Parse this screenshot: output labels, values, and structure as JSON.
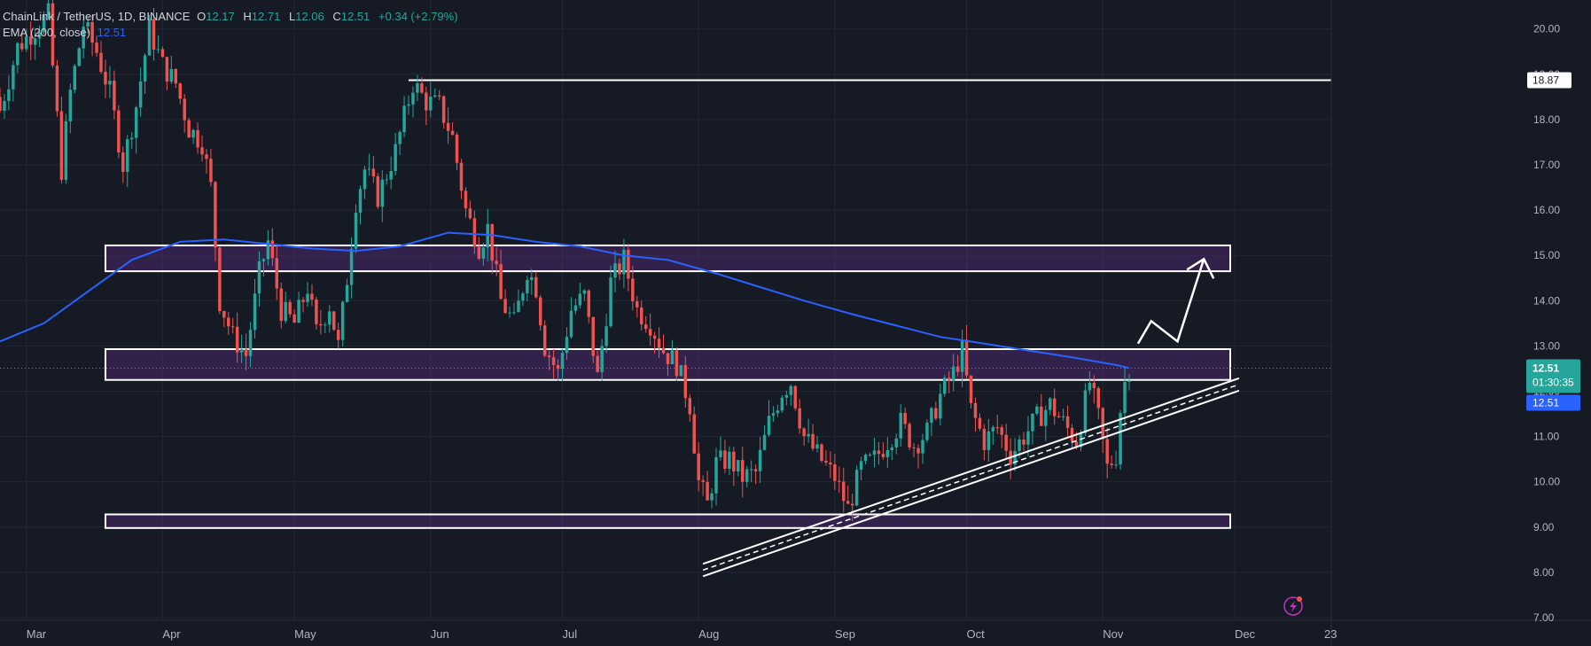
{
  "header": {
    "symbol": "ChainLink / TetherUS, 1D, BINANCE",
    "open_label": "O",
    "open": "12.17",
    "high_label": "H",
    "high": "12.71",
    "low_label": "L",
    "low": "12.06",
    "close_label": "C",
    "close": "12.51",
    "change": "+0.34 (+2.79%)",
    "ema_label": "EMA (200, close)",
    "ema_value": "12.51"
  },
  "price_tags": {
    "top_line": "18.87",
    "last_price": "12.51",
    "countdown": "01:30:35",
    "ema_tag": "12.51"
  },
  "colors": {
    "background": "#161a25",
    "up": "#26a69a",
    "down": "#ef5350",
    "ema": "#2962ff",
    "zone_fill": "#4a2a6b",
    "zone_stroke": "#ffffff",
    "text": "#b2b5be"
  },
  "chart_data": {
    "type": "candlestick",
    "y_axis": {
      "min": 7,
      "max": 20.5,
      "ticks": [
        "7.00",
        "8.00",
        "9.00",
        "10.00",
        "11.00",
        "12.00",
        "13.00",
        "14.00",
        "15.00",
        "16.00",
        "17.00",
        "18.00",
        "19.00",
        "20.00"
      ],
      "position": "right"
    },
    "x_axis": {
      "start": "2023-02-23",
      "end": "2023-12-23",
      "ticks": [
        {
          "label": "Mar",
          "date": "2023-03-01"
        },
        {
          "label": "Apr",
          "date": "2023-04-01"
        },
        {
          "label": "May",
          "date": "2023-05-01"
        },
        {
          "label": "Jun",
          "date": "2023-06-01"
        },
        {
          "label": "Jul",
          "date": "2023-07-01"
        },
        {
          "label": "Aug",
          "date": "2023-08-01"
        },
        {
          "label": "Sep",
          "date": "2023-09-01"
        },
        {
          "label": "Oct",
          "date": "2023-10-01"
        },
        {
          "label": "Nov",
          "date": "2023-11-01"
        },
        {
          "label": "Dec",
          "date": "2023-12-01"
        },
        {
          "label": "23",
          "date": "2023-12-23"
        }
      ]
    },
    "grid": true,
    "price_path": [
      [
        "2023-02-23",
        18.2
      ],
      [
        "2023-02-27",
        19.6
      ],
      [
        "2023-03-02",
        19.9
      ],
      [
        "2023-03-06",
        20.3
      ],
      [
        "2023-03-09",
        16.9
      ],
      [
        "2023-03-11",
        18.6
      ],
      [
        "2023-03-14",
        20.1
      ],
      [
        "2023-03-17",
        19.5
      ],
      [
        "2023-03-20",
        18.6
      ],
      [
        "2023-03-23",
        17.0
      ],
      [
        "2023-03-26",
        18.3
      ],
      [
        "2023-03-29",
        20.0
      ],
      [
        "2023-04-01",
        19.2
      ],
      [
        "2023-04-04",
        18.8
      ],
      [
        "2023-04-07",
        17.8
      ],
      [
        "2023-04-10",
        17.5
      ],
      [
        "2023-04-12",
        16.5
      ],
      [
        "2023-04-14",
        14.0
      ],
      [
        "2023-04-17",
        13.2
      ],
      [
        "2023-04-20",
        12.8
      ],
      [
        "2023-04-23",
        14.6
      ],
      [
        "2023-04-25",
        15.3
      ],
      [
        "2023-04-28",
        13.8
      ],
      [
        "2023-05-01",
        13.5
      ],
      [
        "2023-05-04",
        14.3
      ],
      [
        "2023-05-06",
        13.3
      ],
      [
        "2023-05-09",
        13.9
      ],
      [
        "2023-05-11",
        13.0
      ],
      [
        "2023-05-13",
        14.5
      ],
      [
        "2023-05-15",
        16.2
      ],
      [
        "2023-05-17",
        16.9
      ],
      [
        "2023-05-20",
        16.3
      ],
      [
        "2023-05-24",
        17.3
      ],
      [
        "2023-05-28",
        18.8
      ],
      [
        "2023-05-31",
        18.4
      ],
      [
        "2023-06-03",
        18.3
      ],
      [
        "2023-06-06",
        17.6
      ],
      [
        "2023-06-09",
        16.0
      ],
      [
        "2023-06-12",
        15.2
      ],
      [
        "2023-06-14",
        15.6
      ],
      [
        "2023-06-17",
        14.0
      ],
      [
        "2023-06-20",
        13.5
      ],
      [
        "2023-06-23",
        14.7
      ],
      [
        "2023-06-25",
        14.3
      ],
      [
        "2023-06-27",
        13.0
      ],
      [
        "2023-06-30",
        12.4
      ],
      [
        "2023-07-03",
        13.8
      ],
      [
        "2023-07-06",
        14.1
      ],
      [
        "2023-07-09",
        12.3
      ],
      [
        "2023-07-12",
        14.4
      ],
      [
        "2023-07-15",
        14.9
      ],
      [
        "2023-07-18",
        13.8
      ],
      [
        "2023-07-21",
        13.5
      ],
      [
        "2023-07-24",
        12.9
      ],
      [
        "2023-07-27",
        12.6
      ],
      [
        "2023-07-30",
        11.7
      ],
      [
        "2023-08-01",
        10.0
      ],
      [
        "2023-08-03",
        9.5
      ],
      [
        "2023-08-05",
        10.4
      ],
      [
        "2023-08-08",
        10.5
      ],
      [
        "2023-08-11",
        10.1
      ],
      [
        "2023-08-14",
        10.2
      ],
      [
        "2023-08-17",
        11.3
      ],
      [
        "2023-08-20",
        12.0
      ],
      [
        "2023-08-22",
        12.2
      ],
      [
        "2023-08-25",
        11.0
      ],
      [
        "2023-08-28",
        10.6
      ],
      [
        "2023-09-01",
        10.1
      ],
      [
        "2023-09-04",
        9.4
      ],
      [
        "2023-09-07",
        10.3
      ],
      [
        "2023-09-10",
        10.5
      ],
      [
        "2023-09-13",
        10.9
      ],
      [
        "2023-09-16",
        11.3
      ],
      [
        "2023-09-19",
        10.8
      ],
      [
        "2023-09-22",
        11.1
      ],
      [
        "2023-09-25",
        11.9
      ],
      [
        "2023-09-28",
        12.4
      ],
      [
        "2023-09-30",
        12.9
      ],
      [
        "2023-10-02",
        11.6
      ],
      [
        "2023-10-05",
        10.9
      ],
      [
        "2023-10-08",
        11.2
      ],
      [
        "2023-10-11",
        10.6
      ],
      [
        "2023-10-14",
        11.0
      ],
      [
        "2023-10-17",
        11.4
      ],
      [
        "2023-10-20",
        11.7
      ],
      [
        "2023-10-23",
        11.3
      ],
      [
        "2023-10-26",
        10.9
      ],
      [
        "2023-10-29",
        12.2
      ],
      [
        "2023-10-31",
        11.4
      ],
      [
        "2023-11-02",
        10.3
      ],
      [
        "2023-11-04",
        10.6
      ],
      [
        "2023-11-05",
        11.6
      ],
      [
        "2023-11-06",
        12.2
      ],
      [
        "2023-11-07",
        12.5
      ]
    ],
    "ema_200": [
      [
        "2023-02-23",
        13.1
      ],
      [
        "2023-03-05",
        13.5
      ],
      [
        "2023-03-15",
        14.2
      ],
      [
        "2023-03-25",
        14.9
      ],
      [
        "2023-04-05",
        15.3
      ],
      [
        "2023-04-15",
        15.35
      ],
      [
        "2023-04-25",
        15.25
      ],
      [
        "2023-05-05",
        15.15
      ],
      [
        "2023-05-15",
        15.1
      ],
      [
        "2023-05-25",
        15.2
      ],
      [
        "2023-06-05",
        15.5
      ],
      [
        "2023-06-15",
        15.45
      ],
      [
        "2023-06-25",
        15.3
      ],
      [
        "2023-07-05",
        15.2
      ],
      [
        "2023-07-15",
        15.0
      ],
      [
        "2023-07-25",
        14.9
      ],
      [
        "2023-08-05",
        14.6
      ],
      [
        "2023-08-15",
        14.3
      ],
      [
        "2023-08-25",
        14.0
      ],
      [
        "2023-09-05",
        13.7
      ],
      [
        "2023-09-15",
        13.45
      ],
      [
        "2023-09-25",
        13.2
      ],
      [
        "2023-10-05",
        13.05
      ],
      [
        "2023-10-15",
        12.9
      ],
      [
        "2023-10-25",
        12.75
      ],
      [
        "2023-11-04",
        12.58
      ],
      [
        "2023-11-07",
        12.51
      ]
    ],
    "zones": [
      {
        "from": "2023-03-19",
        "to": "2023-11-30",
        "low": 14.65,
        "high": 15.22
      },
      {
        "from": "2023-03-19",
        "to": "2023-11-30",
        "low": 12.25,
        "high": 12.93
      },
      {
        "from": "2023-03-19",
        "to": "2023-11-30",
        "low": 8.98,
        "high": 9.28
      }
    ],
    "horizontal_line": {
      "from": "2023-05-27",
      "value": 18.87
    },
    "trend_channel": {
      "from": [
        "2023-08-02",
        8.05
      ],
      "to": [
        "2023-12-02",
        12.15
      ]
    },
    "projection_arrow": [
      [
        "2023-11-09",
        13.05
      ],
      [
        "2023-11-12",
        13.55
      ],
      [
        "2023-11-18",
        13.1
      ],
      [
        "2023-11-24",
        14.92
      ]
    ]
  }
}
